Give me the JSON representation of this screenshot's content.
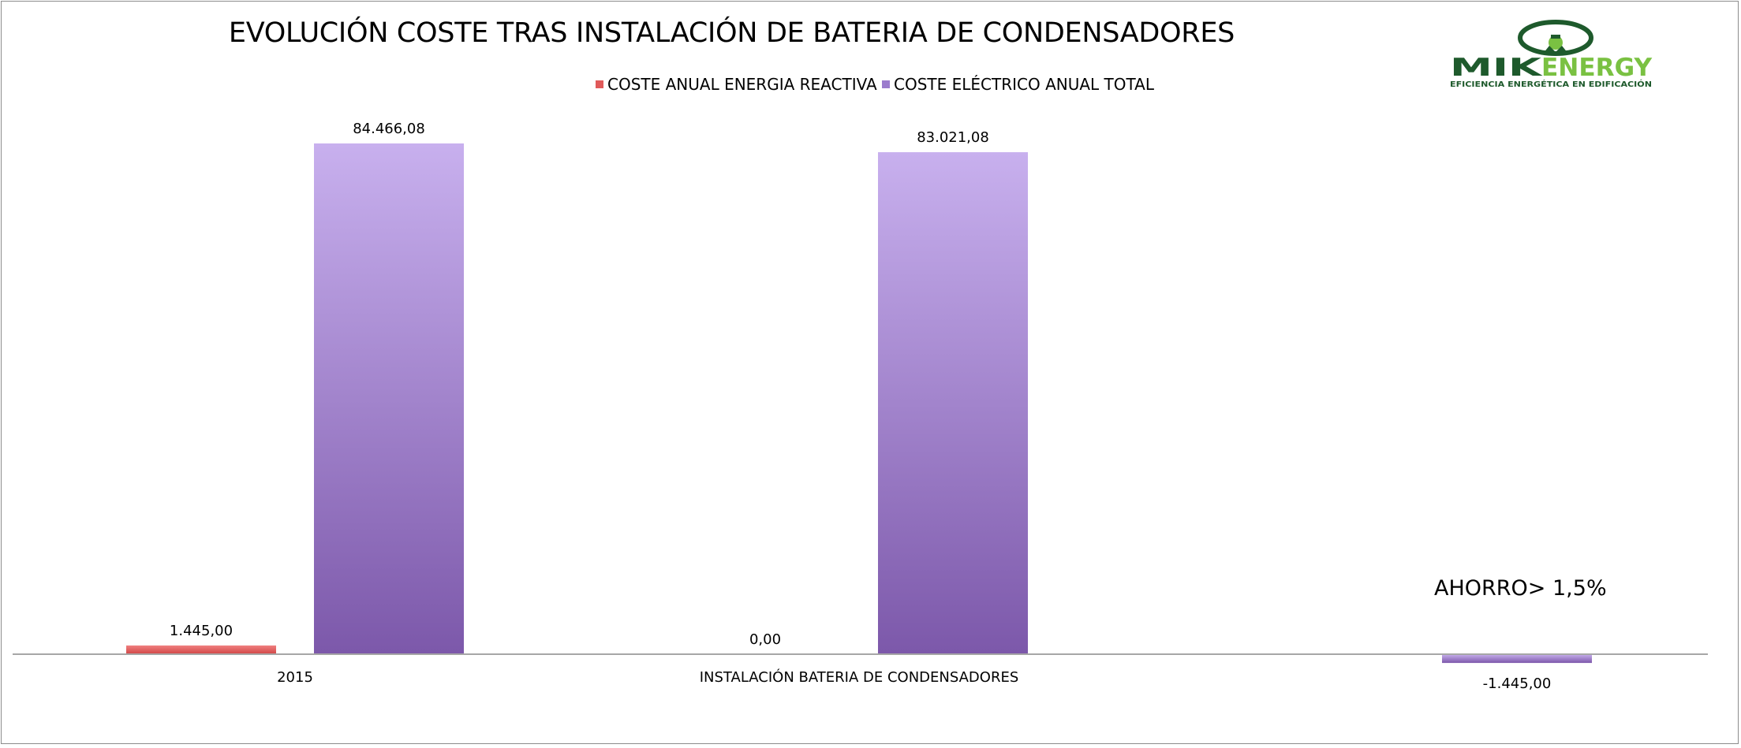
{
  "chart_data": {
    "type": "bar",
    "title": "EVOLUCIÓN COSTE TRAS INSTALACIÓN DE BATERIA DE CONDENSADORES",
    "categories": [
      "2015",
      "INSTALACIÓN BATERIA DE CONDENSADORES",
      ""
    ],
    "series": [
      {
        "name": "COSTE ANUAL ENERGIA REACTIVA",
        "values": [
          1445.0,
          0.0,
          null
        ],
        "labels": [
          "1.445,00",
          "0,00",
          ""
        ],
        "color": "#e05a5a"
      },
      {
        "name": "COSTE ELÉCTRICO ANUAL TOTAL",
        "values": [
          84466.08,
          83021.08,
          -1445.0
        ],
        "labels": [
          "84.466,08",
          "83.021,08",
          "-1.445,00"
        ],
        "color": "#9b7ccd"
      }
    ],
    "ylim": [
      -1445,
      84466.08
    ],
    "legend_position": "top-center",
    "grid": false,
    "annotations": [
      "AHORRO> 1,5%"
    ]
  },
  "logo": {
    "name": "MIKENERGY",
    "tagline": "EFICIENCIA ENERGÉTICA EN EDIFICACIÓN",
    "colors": {
      "dark": "#1e5a2c",
      "light": "#7ac142"
    }
  }
}
